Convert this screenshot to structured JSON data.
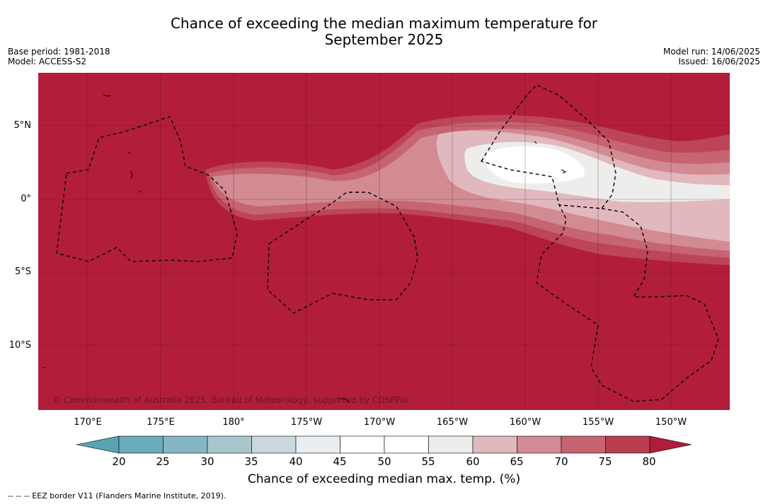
{
  "title_line1": "Chance of exceeding the median maximum temperature for",
  "title_line2": "September 2025",
  "meta_left": {
    "base_period": "Base period: 1981-2018",
    "model": "Model: ACCESS-S2"
  },
  "meta_right": {
    "model_run": "Model run: 14/06/2025",
    "issued": "Issued: 16/06/2025"
  },
  "lat_labels": [
    "5°N",
    "0°",
    "5°S",
    "10°S"
  ],
  "lon_labels": [
    "170°E",
    "175°E",
    "180°",
    "175°W",
    "170°W",
    "165°W",
    "160°W",
    "155°W",
    "150°W"
  ],
  "copyright": "© Commonwealth of Australia 2025, Bureau of Meteorology, supported by COSPPac",
  "colorbar": {
    "ticks": [
      "20",
      "25",
      "30",
      "35",
      "40",
      "45",
      "50",
      "55",
      "60",
      "65",
      "70",
      "75",
      "80"
    ],
    "colors": [
      "#6aacbb",
      "#86b6c3",
      "#a7c7cc",
      "#cbd8dd",
      "#e8eef1",
      "#ffffff",
      "#ffffff",
      "#ededeb",
      "#e0b8bd",
      "#d28a93",
      "#c66472",
      "#b93f50"
    ],
    "under_color": "#5aa4b2",
    "over_color": "#b01c3b",
    "label": "Chance of exceeding median max. temp. (%)"
  },
  "colors": {
    "background_high": "#b21e3a"
  },
  "footnote": "--  --  -- EEZ border V11 (Flanders Marine Institute, 2019)."
}
